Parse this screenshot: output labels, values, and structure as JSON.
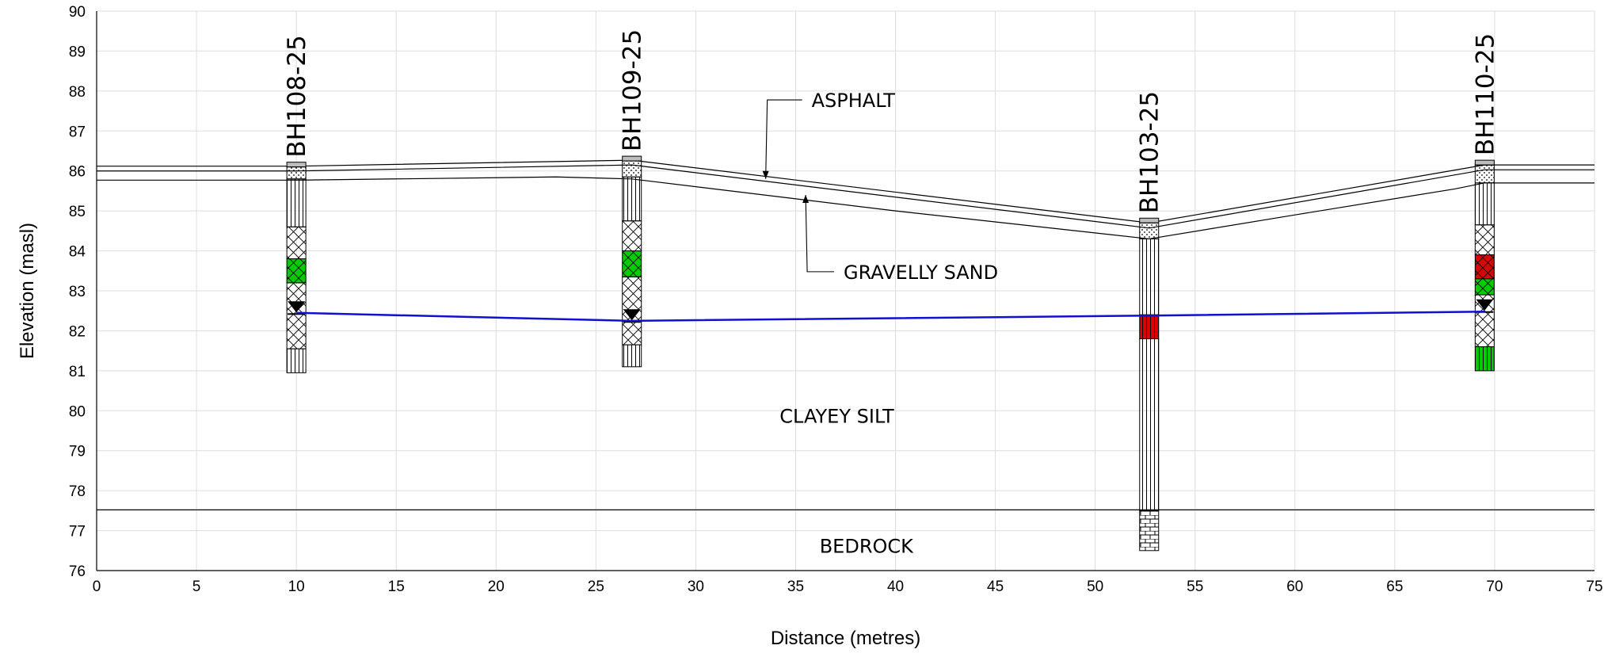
{
  "chart_data": {
    "type": "geological_cross_section",
    "xlabel": "Distance (metres)",
    "ylabel": "Elevation (masl)",
    "xlim": [
      0,
      75
    ],
    "ylim": [
      76,
      90
    ],
    "xticks": [
      0,
      5,
      10,
      15,
      20,
      25,
      30,
      35,
      40,
      45,
      50,
      55,
      60,
      65,
      70,
      75
    ],
    "yticks": [
      76,
      77,
      78,
      79,
      80,
      81,
      82,
      83,
      84,
      85,
      86,
      87,
      88,
      89,
      90
    ],
    "grid": true,
    "boreholes": [
      {
        "id": "BH108-25",
        "x": 10.0,
        "top": 86.1,
        "bottom": 80.95,
        "intervals": [
          {
            "from": 86.1,
            "to": 85.8,
            "material": "gravelly sand"
          },
          {
            "from": 85.8,
            "to": 84.6,
            "material": "clayey silt"
          },
          {
            "from": 84.6,
            "to": 83.8,
            "material": "fill"
          },
          {
            "from": 83.8,
            "to": 83.2,
            "material": "fill",
            "highlight": "green"
          },
          {
            "from": 83.2,
            "to": 81.55,
            "material": "fill"
          },
          {
            "from": 81.55,
            "to": 80.95,
            "material": "clayey silt"
          }
        ],
        "water_level": 82.5
      },
      {
        "id": "BH109-25",
        "x": 26.8,
        "top": 86.25,
        "bottom": 81.1,
        "intervals": [
          {
            "from": 86.25,
            "to": 85.85,
            "material": "gravelly sand"
          },
          {
            "from": 85.85,
            "to": 84.75,
            "material": "clayey silt"
          },
          {
            "from": 84.75,
            "to": 84.0,
            "material": "fill"
          },
          {
            "from": 84.0,
            "to": 83.35,
            "material": "fill",
            "highlight": "green"
          },
          {
            "from": 83.35,
            "to": 81.65,
            "material": "fill"
          },
          {
            "from": 81.65,
            "to": 81.1,
            "material": "clayey silt"
          }
        ],
        "water_level": 82.3
      },
      {
        "id": "BH103-25",
        "x": 52.7,
        "top": 84.7,
        "bottom": 76.5,
        "intervals": [
          {
            "from": 84.7,
            "to": 84.3,
            "material": "gravelly sand"
          },
          {
            "from": 84.3,
            "to": 82.4,
            "material": "clayey silt"
          },
          {
            "from": 82.4,
            "to": 81.8,
            "material": "clayey silt",
            "highlight": "red"
          },
          {
            "from": 81.8,
            "to": 77.5,
            "material": "clayey silt"
          },
          {
            "from": 77.5,
            "to": 76.5,
            "material": "bedrock"
          }
        ]
      },
      {
        "id": "BH110-25",
        "x": 69.5,
        "top": 86.15,
        "bottom": 81.0,
        "intervals": [
          {
            "from": 86.15,
            "to": 85.7,
            "material": "gravelly sand"
          },
          {
            "from": 85.7,
            "to": 84.65,
            "material": "clayey silt"
          },
          {
            "from": 84.65,
            "to": 83.9,
            "material": "fill"
          },
          {
            "from": 83.9,
            "to": 83.3,
            "material": "fill",
            "highlight": "red"
          },
          {
            "from": 83.3,
            "to": 82.9,
            "material": "fill",
            "highlight": "green"
          },
          {
            "from": 82.9,
            "to": 81.6,
            "material": "fill"
          },
          {
            "from": 81.6,
            "to": 81.0,
            "material": "clayey silt",
            "highlight": "green"
          }
        ],
        "water_level": 82.55
      }
    ],
    "surfaces": [
      {
        "name": "asphalt_top",
        "points": [
          [
            0,
            86.12
          ],
          [
            10,
            86.12
          ],
          [
            26.8,
            86.27
          ],
          [
            52.7,
            84.7
          ],
          [
            69.5,
            86.15
          ],
          [
            75,
            86.15
          ]
        ]
      },
      {
        "name": "asphalt_base",
        "points": [
          [
            0,
            86.0
          ],
          [
            10,
            86.0
          ],
          [
            26.8,
            86.15
          ],
          [
            52.7,
            84.57
          ],
          [
            69.5,
            86.03
          ],
          [
            75,
            86.03
          ]
        ]
      },
      {
        "name": "gravelly_sand_base",
        "points": [
          [
            0,
            85.77
          ],
          [
            10,
            85.77
          ],
          [
            23,
            85.85
          ],
          [
            26.8,
            85.8
          ],
          [
            40,
            85.0
          ],
          [
            52.7,
            84.3
          ],
          [
            60,
            84.9
          ],
          [
            68,
            85.55
          ],
          [
            69.5,
            85.7
          ],
          [
            75,
            85.7
          ]
        ]
      },
      {
        "name": "bedrock_top",
        "points": [
          [
            0,
            77.52
          ],
          [
            75,
            77.52
          ]
        ]
      }
    ],
    "water_table": [
      [
        10,
        82.45
      ],
      [
        26.8,
        82.25
      ],
      [
        52.7,
        82.38
      ],
      [
        69.5,
        82.48
      ]
    ],
    "labels": [
      {
        "text": "ASPHALT",
        "x": 35.8,
        "y": 87.6,
        "leader_to": [
          33.5,
          85.8
        ]
      },
      {
        "text": "GRAVELLY SAND",
        "x": 37.4,
        "y": 83.3,
        "leader_to": [
          35.5,
          85.4
        ]
      },
      {
        "text": "CLAYEY SILT",
        "x": 34.2,
        "y": 79.7
      },
      {
        "text": "BEDROCK",
        "x": 36.2,
        "y": 76.45
      }
    ],
    "colors": {
      "water_table": "#1010d0",
      "green": "#00cc00",
      "red": "#dd0000",
      "grid": "#dddddd"
    }
  }
}
